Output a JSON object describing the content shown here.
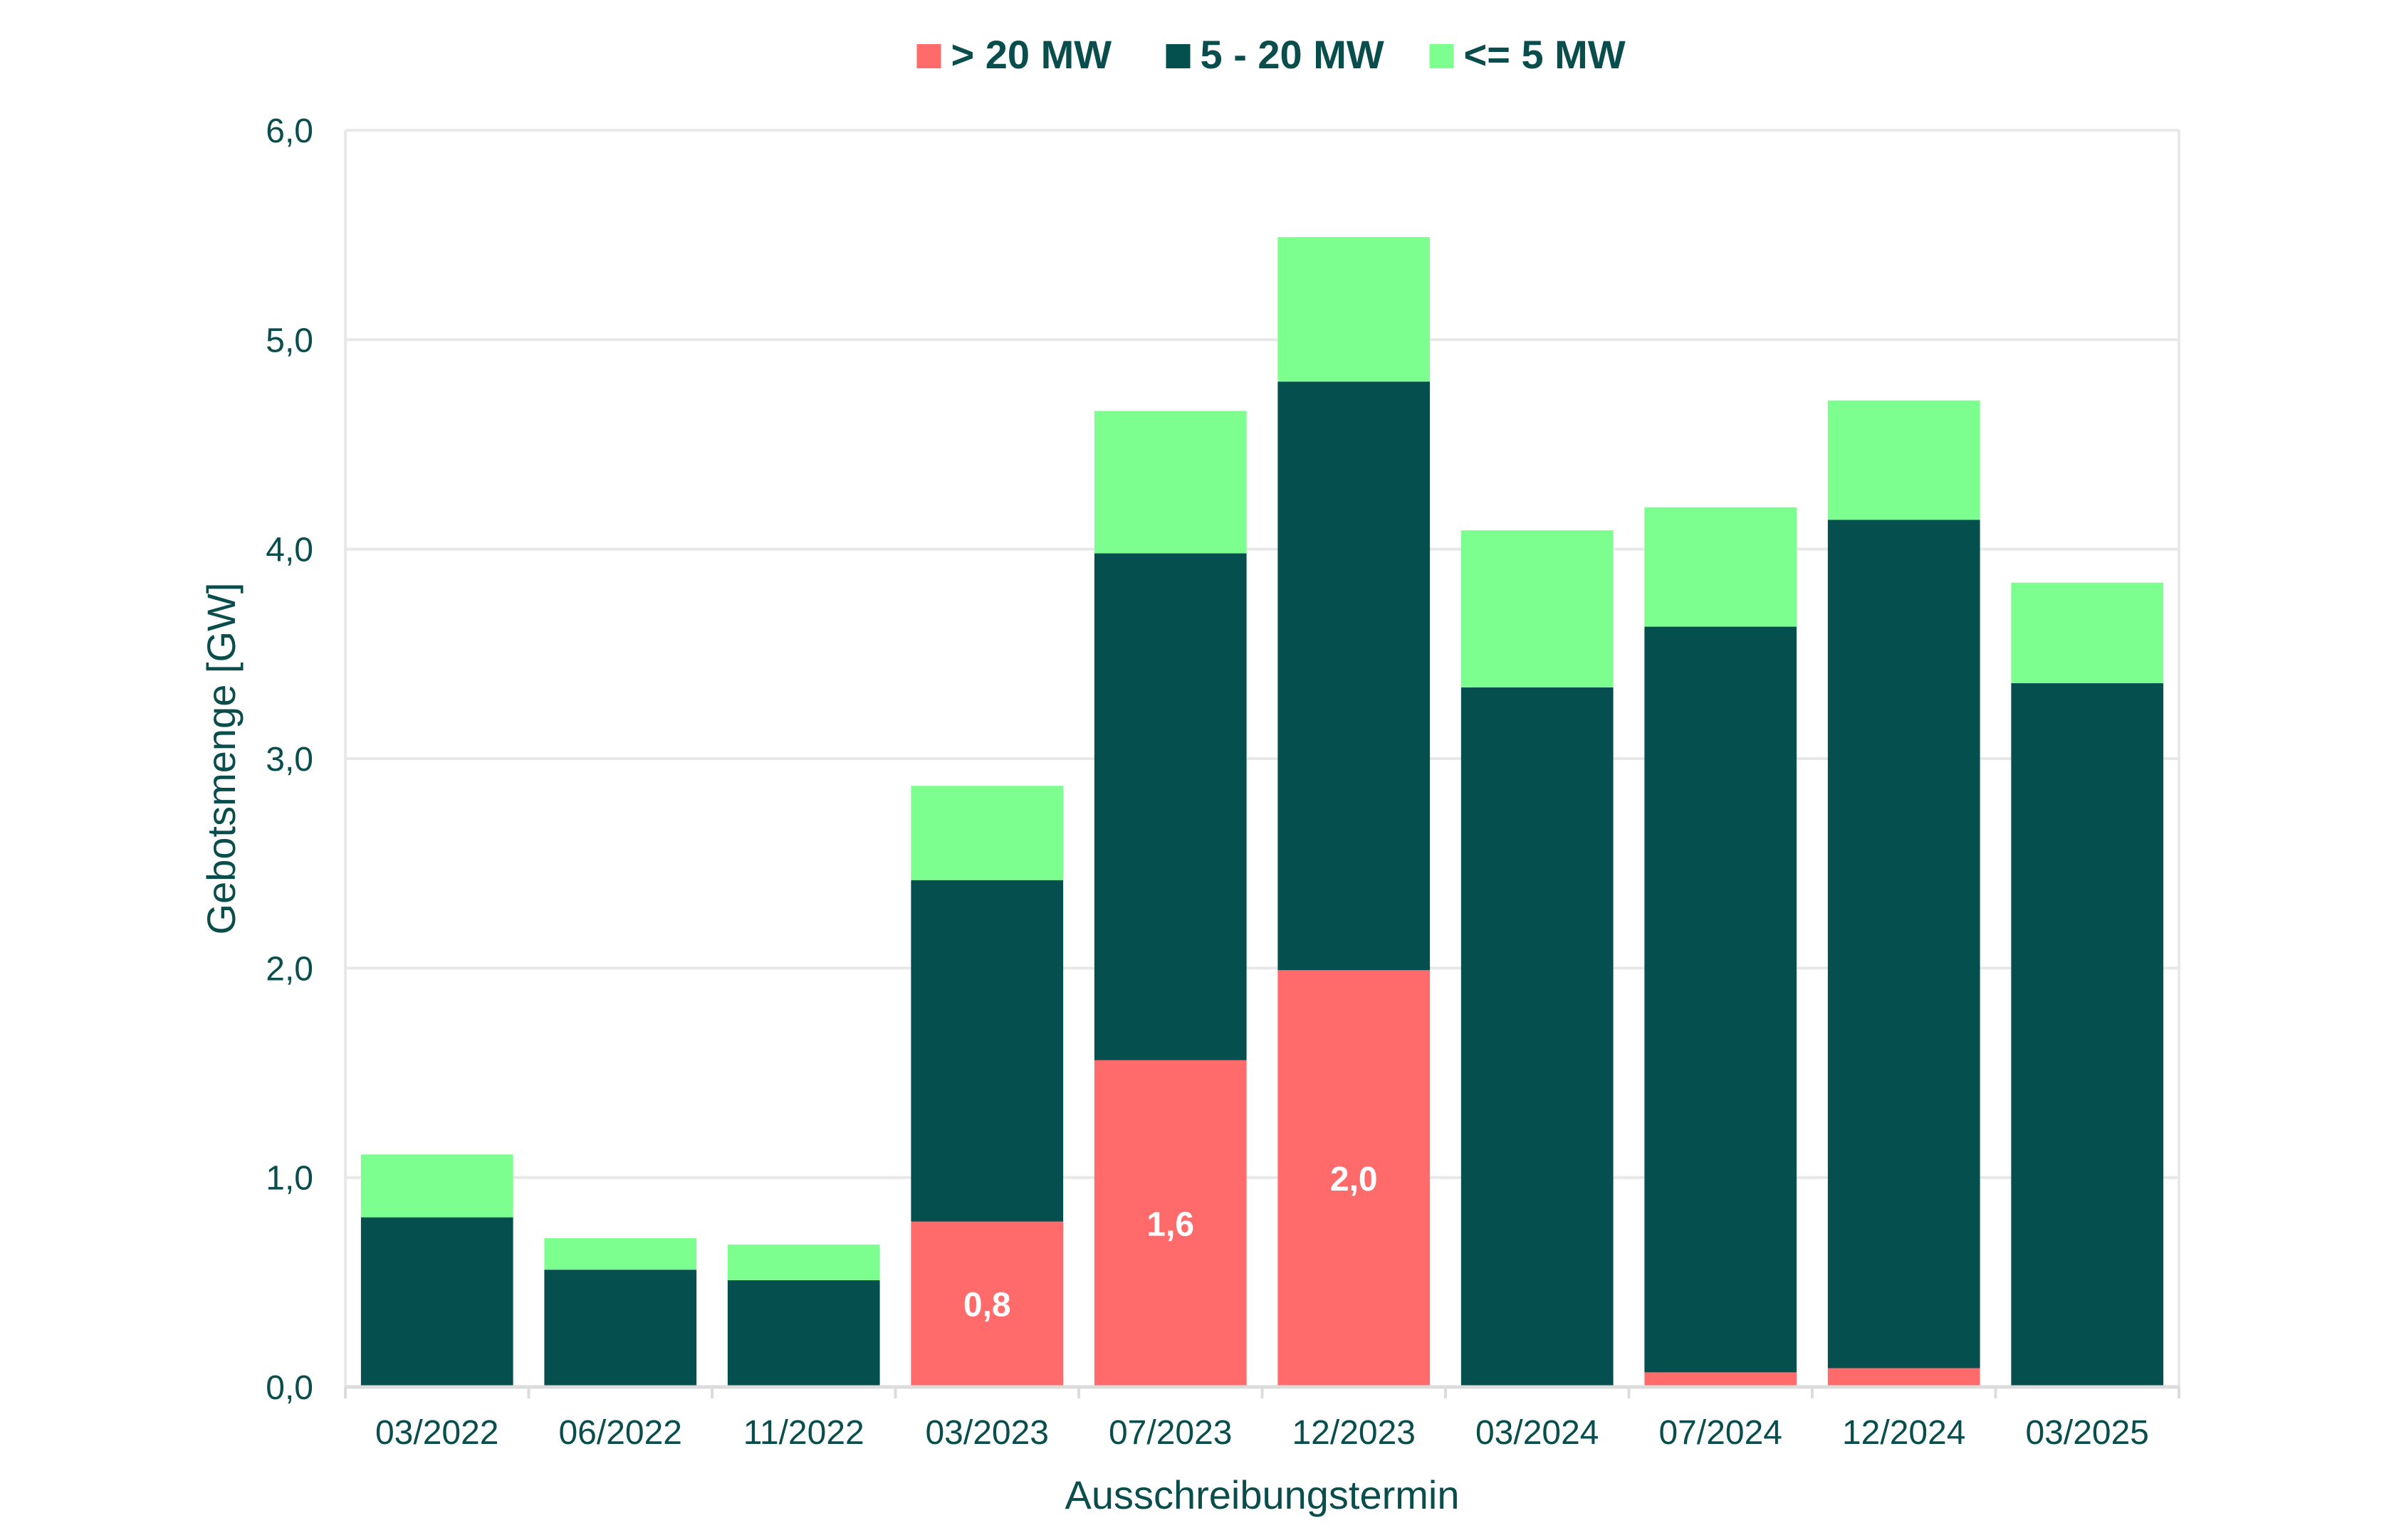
{
  "chart_data": {
    "type": "bar",
    "stacked": true,
    "categories": [
      "03/2022",
      "06/2022",
      "11/2022",
      "03/2023",
      "07/2023",
      "12/2023",
      "03/2024",
      "07/2024",
      "12/2024",
      "03/2025"
    ],
    "series": [
      {
        "name": "> 20 MW",
        "color": "#ff6b6b",
        "values": [
          0,
          0,
          0,
          0.79,
          1.56,
          1.99,
          0,
          0.07,
          0.09,
          0
        ],
        "labels": [
          "",
          "",
          "",
          "0,8",
          "1,6",
          "2,0",
          "",
          "",
          "",
          ""
        ]
      },
      {
        "name": "5 - 20 MW",
        "color": "#064f4f",
        "values": [
          0.81,
          0.56,
          0.51,
          1.63,
          2.42,
          2.81,
          3.34,
          3.56,
          4.05,
          3.36
        ],
        "labels": [
          "",
          "",
          "",
          "",
          "",
          "",
          "",
          "",
          "",
          ""
        ]
      },
      {
        "name": "<= 5 MW",
        "color": "#7dff8f",
        "values": [
          0.3,
          0.15,
          0.17,
          0.45,
          0.68,
          0.69,
          0.75,
          0.57,
          0.57,
          0.48
        ],
        "labels": [
          "",
          "",
          "",
          "",
          "",
          "",
          "",
          "",
          "",
          ""
        ]
      }
    ],
    "xlabel": "Ausschreibungstermin",
    "ylabel": "Gebotsmenge [GW]",
    "ylim": [
      0,
      6
    ],
    "yticks": [
      0,
      1,
      2,
      3,
      4,
      5,
      6
    ],
    "ytick_labels": [
      "0,0",
      "1,0",
      "2,0",
      "3,0",
      "4,0",
      "5,0",
      "6,0"
    ],
    "grid": true,
    "legend_position": "top-center"
  }
}
